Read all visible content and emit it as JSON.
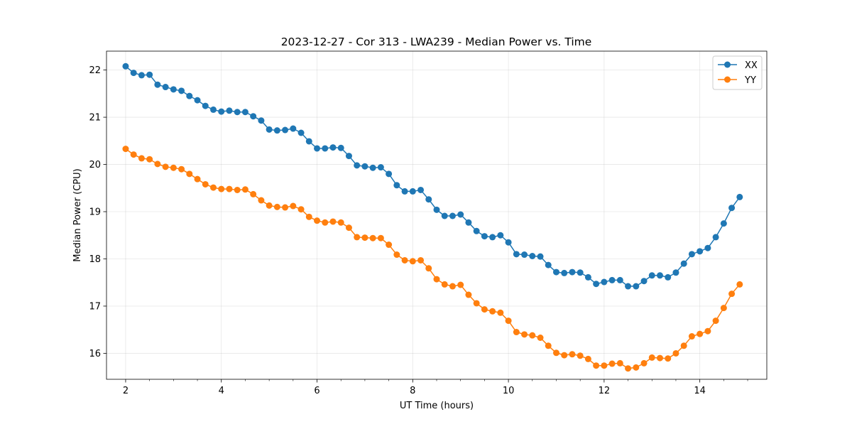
{
  "chart_data": {
    "type": "line",
    "title": "2023-12-27 - Cor 313 - LWA239 - Median Power vs. Time",
    "xlabel": "UT Time (hours)",
    "ylabel": "Median Power (CPU)",
    "xlim": [
      1.6,
      15.4
    ],
    "ylim": [
      15.45,
      22.4
    ],
    "x_ticks": [
      2,
      4,
      6,
      8,
      10,
      12,
      14
    ],
    "x_tick_labels": [
      "2",
      "4",
      "6",
      "8",
      "10",
      "12",
      "14"
    ],
    "y_ticks": [
      16,
      17,
      18,
      19,
      20,
      21,
      22
    ],
    "y_tick_labels": [
      "16",
      "17",
      "18",
      "19",
      "20",
      "21",
      "22"
    ],
    "grid": true,
    "legend_placement": "top-right",
    "x": [
      2.0,
      2.1667,
      2.3333,
      2.5,
      2.6667,
      2.8333,
      3.0,
      3.1667,
      3.3333,
      3.5,
      3.6667,
      3.8333,
      4.0,
      4.1667,
      4.3333,
      4.5,
      4.6667,
      4.8333,
      5.0,
      5.1667,
      5.3333,
      5.5,
      5.6667,
      5.8333,
      6.0,
      6.1667,
      6.3333,
      6.5,
      6.6667,
      6.8333,
      7.0,
      7.1667,
      7.3333,
      7.5,
      7.6667,
      7.8333,
      8.0,
      8.1667,
      8.3333,
      8.5,
      8.6667,
      8.8333,
      9.0,
      9.1667,
      9.3333,
      9.5,
      9.6667,
      9.8333,
      10.0,
      10.1667,
      10.3333,
      10.5,
      10.6667,
      10.8333,
      11.0,
      11.1667,
      11.3333,
      11.5,
      11.6667,
      11.8333,
      12.0,
      12.1667,
      12.3333,
      12.5,
      12.6667,
      12.8333,
      13.0,
      13.1667,
      13.3333,
      13.5,
      13.6667,
      13.8333,
      14.0,
      14.1667,
      14.3333,
      14.5,
      14.6667,
      14.8333
    ],
    "series": [
      {
        "name": "XX",
        "color": "#1f77b4",
        "values": [
          22.08,
          21.94,
          21.89,
          21.9,
          21.69,
          21.64,
          21.59,
          21.56,
          21.45,
          21.36,
          21.24,
          21.16,
          21.12,
          21.14,
          21.11,
          21.11,
          21.02,
          20.93,
          20.74,
          20.72,
          20.73,
          20.76,
          20.67,
          20.49,
          20.34,
          20.34,
          20.36,
          20.35,
          20.18,
          19.98,
          19.96,
          19.93,
          19.94,
          19.8,
          19.56,
          19.43,
          19.43,
          19.46,
          19.26,
          19.04,
          18.91,
          18.91,
          18.94,
          18.77,
          18.59,
          18.48,
          18.46,
          18.5,
          18.35,
          18.1,
          18.09,
          18.06,
          18.05,
          17.87,
          17.72,
          17.7,
          17.72,
          17.71,
          17.61,
          17.47,
          17.51,
          17.55,
          17.55,
          17.42,
          17.42,
          17.53,
          17.65,
          17.65,
          17.61,
          17.71,
          17.9,
          18.1,
          18.16,
          18.23,
          18.46,
          18.75,
          19.08,
          19.31
        ]
      },
      {
        "name": "YY",
        "color": "#ff7f0e",
        "values": [
          20.33,
          20.21,
          20.13,
          20.11,
          20.01,
          19.95,
          19.93,
          19.9,
          19.8,
          19.69,
          19.58,
          19.51,
          19.48,
          19.48,
          19.46,
          19.47,
          19.37,
          19.24,
          19.13,
          19.1,
          19.09,
          19.12,
          19.05,
          18.89,
          18.81,
          18.77,
          18.79,
          18.77,
          18.66,
          18.46,
          18.45,
          18.44,
          18.44,
          18.3,
          18.09,
          17.97,
          17.95,
          17.97,
          17.8,
          17.57,
          17.46,
          17.42,
          17.45,
          17.24,
          17.06,
          16.93,
          16.89,
          16.86,
          16.69,
          16.45,
          16.4,
          16.38,
          16.33,
          16.16,
          16.01,
          15.96,
          15.98,
          15.95,
          15.88,
          15.74,
          15.74,
          15.78,
          15.79,
          15.68,
          15.7,
          15.79,
          15.91,
          15.9,
          15.89,
          16.0,
          16.16,
          16.36,
          16.41,
          16.47,
          16.69,
          16.96,
          17.26,
          17.46
        ]
      }
    ]
  }
}
